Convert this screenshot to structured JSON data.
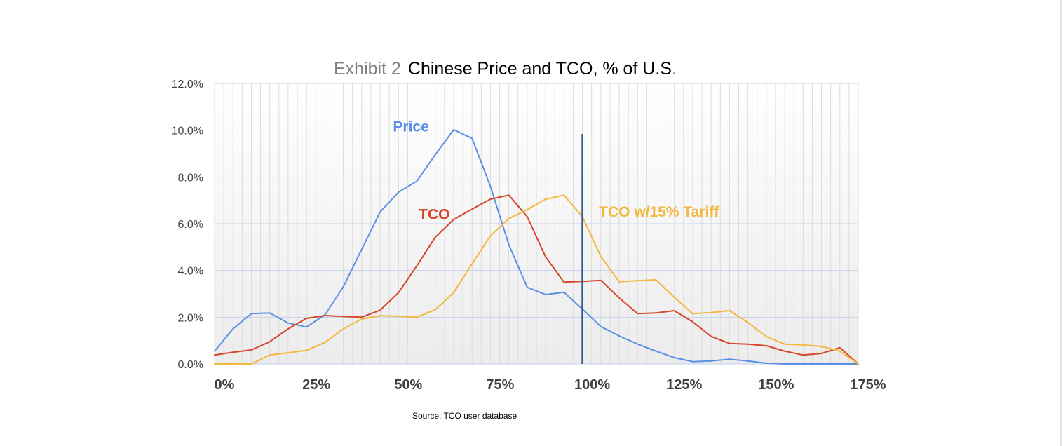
{
  "chart_data": {
    "type": "line",
    "title_prefix": "Exhibit 2",
    "title": "Chinese Price and TCO, % of U.S",
    "title_suffix": ".",
    "source": "Source: TCO user database",
    "x": [
      0,
      5,
      10,
      15,
      20,
      25,
      30,
      35,
      40,
      45,
      50,
      55,
      60,
      65,
      70,
      75,
      80,
      85,
      90,
      95,
      100,
      105,
      110,
      115,
      120,
      125,
      130,
      135,
      140,
      145,
      150,
      155,
      160,
      165,
      170,
      175
    ],
    "xlim": [
      0,
      175
    ],
    "ylim": [
      0,
      12
    ],
    "xticks": [
      0,
      25,
      50,
      75,
      100,
      125,
      150,
      175
    ],
    "xtick_labels": [
      "0%",
      "25%",
      "50%",
      "75%",
      "100%",
      "125%",
      "150%",
      "175%"
    ],
    "yticks": [
      0,
      2,
      4,
      6,
      8,
      10,
      12
    ],
    "ytick_labels": [
      "0.0%",
      "2.0%",
      "4.0%",
      "6.0%",
      "8.0%",
      "10.0%",
      "12.0%"
    ],
    "grid": true,
    "vertical_marker": 100,
    "series": [
      {
        "name": "Price",
        "color": "#5b8fe6",
        "label_pos": [
          48.5,
          9.95
        ],
        "values": [
          0.55,
          1.5,
          2.15,
          2.18,
          1.75,
          1.58,
          2.1,
          3.3,
          4.9,
          6.5,
          7.35,
          7.82,
          8.95,
          10.02,
          9.65,
          7.6,
          5.1,
          3.28,
          2.97,
          3.07,
          2.35,
          1.6,
          1.2,
          0.85,
          0.55,
          0.27,
          0.1,
          0.13,
          0.2,
          0.13,
          0.03,
          0,
          0,
          0,
          0,
          0
        ]
      },
      {
        "name": "TCO",
        "color": "#d8442a",
        "label_pos": [
          55.5,
          6.2
        ],
        "values": [
          0.38,
          0.5,
          0.6,
          0.95,
          1.5,
          1.95,
          2.07,
          2.03,
          2.0,
          2.3,
          3.05,
          4.2,
          5.42,
          6.18,
          6.62,
          7.05,
          7.22,
          6.3,
          4.58,
          3.5,
          3.53,
          3.58,
          2.83,
          2.15,
          2.18,
          2.28,
          1.8,
          1.18,
          0.88,
          0.85,
          0.78,
          0.55,
          0.38,
          0.45,
          0.7,
          0
        ]
      },
      {
        "name": "TCO  w/15% Tariff",
        "color": "#f3b73b",
        "label_pos": [
          104.5,
          6.3
        ],
        "values": [
          0,
          0,
          0,
          0.38,
          0.48,
          0.58,
          0.92,
          1.5,
          1.92,
          2.07,
          2.04,
          2.0,
          2.32,
          3.05,
          4.28,
          5.48,
          6.22,
          6.6,
          7.05,
          7.22,
          6.3,
          4.6,
          3.52,
          3.56,
          3.6,
          2.85,
          2.15,
          2.2,
          2.28,
          1.77,
          1.17,
          0.85,
          0.82,
          0.75,
          0.55,
          0
        ]
      }
    ]
  }
}
